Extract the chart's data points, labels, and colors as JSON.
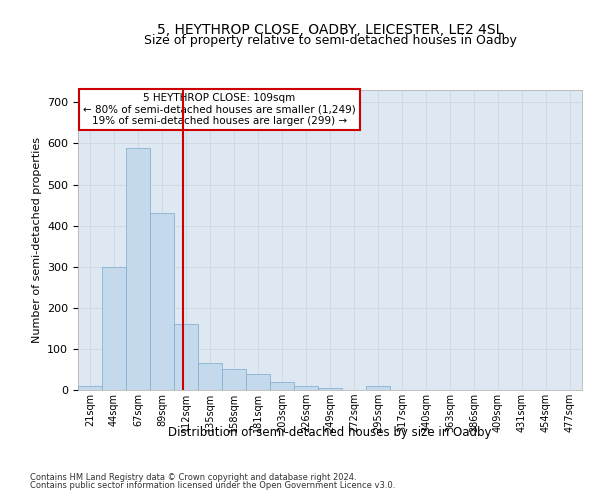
{
  "title": "5, HEYTHROP CLOSE, OADBY, LEICESTER, LE2 4SL",
  "subtitle": "Size of property relative to semi-detached houses in Oadby",
  "xlabel": "Distribution of semi-detached houses by size in Oadby",
  "ylabel": "Number of semi-detached properties",
  "footnote1": "Contains HM Land Registry data © Crown copyright and database right 2024.",
  "footnote2": "Contains public sector information licensed under the Open Government Licence v3.0.",
  "bar_labels": [
    "21sqm",
    "44sqm",
    "67sqm",
    "89sqm",
    "112sqm",
    "135sqm",
    "158sqm",
    "181sqm",
    "203sqm",
    "226sqm",
    "249sqm",
    "272sqm",
    "295sqm",
    "317sqm",
    "340sqm",
    "363sqm",
    "386sqm",
    "409sqm",
    "431sqm",
    "454sqm",
    "477sqm"
  ],
  "bar_values": [
    10,
    300,
    590,
    430,
    160,
    65,
    50,
    40,
    20,
    10,
    5,
    0,
    10,
    0,
    0,
    0,
    0,
    0,
    0,
    0,
    0
  ],
  "bar_color": "#c5d9ed",
  "bar_edge_color": "#7aabcc",
  "property_label": "5 HEYTHROP CLOSE: 109sqm",
  "annotation_line1": "← 80% of semi-detached houses are smaller (1,249)",
  "annotation_line2": "19% of semi-detached houses are larger (299) →",
  "vline_color": "#cc0000",
  "annotation_box_edgecolor": "#cc0000",
  "annotation_fill": "#ffffff",
  "ylim": [
    0,
    730
  ],
  "yticks": [
    0,
    100,
    200,
    300,
    400,
    500,
    600,
    700
  ],
  "grid_color": "#d0d8e0",
  "bg_color": "#dde8f2",
  "title_fontsize": 10,
  "vline_x": 3.87
}
